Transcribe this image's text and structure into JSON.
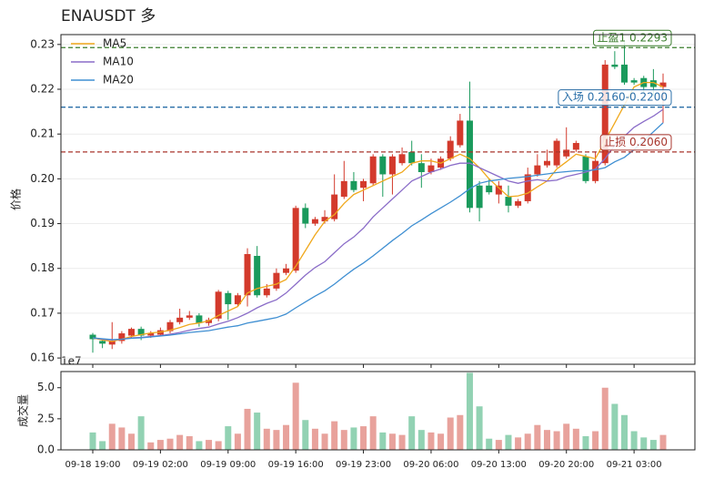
{
  "chart_data": {
    "type": "candlestick",
    "title": "ENAUSDT 多",
    "ylabel": "价格",
    "categories": [
      "09-18 19:00",
      null,
      null,
      null,
      null,
      null,
      null,
      "09-19 02:00",
      null,
      null,
      null,
      null,
      null,
      null,
      "09-19 09:00",
      null,
      null,
      null,
      null,
      null,
      null,
      "09-19 16:00",
      null,
      null,
      null,
      null,
      null,
      null,
      "09-19 23:00",
      null,
      null,
      null,
      null,
      null,
      null,
      "09-20 06:00",
      null,
      null,
      null,
      null,
      null,
      null,
      "09-20 13:00",
      null,
      null,
      null,
      null,
      null,
      null,
      "09-20 20:00",
      null,
      null,
      null,
      null,
      null,
      null,
      "09-21 03:00",
      null,
      null,
      null
    ],
    "open": [
      0.1652,
      0.1638,
      0.163,
      0.1638,
      0.165,
      0.1665,
      0.165,
      0.1652,
      0.166,
      0.168,
      0.169,
      0.1695,
      0.1678,
      0.1688,
      0.1745,
      0.172,
      0.174,
      0.1828,
      0.174,
      0.1755,
      0.179,
      0.1795,
      0.1935,
      0.19,
      0.1905,
      0.191,
      0.196,
      0.1995,
      0.198,
      0.199,
      0.205,
      0.201,
      0.2035,
      0.206,
      0.2035,
      0.2015,
      0.2025,
      0.2045,
      0.2075,
      0.213,
      0.1985,
      0.1985,
      0.1965,
      0.196,
      0.194,
      0.195,
      0.201,
      0.203,
      0.203,
      0.205,
      0.2065,
      0.205,
      0.1995,
      0.2035,
      0.2255,
      0.2255,
      0.222,
      0.2225,
      0.222,
      0.2205
    ],
    "high": [
      0.1656,
      0.164,
      0.168,
      0.166,
      0.1668,
      0.167,
      0.166,
      0.1668,
      0.1685,
      0.171,
      0.1705,
      0.17,
      0.169,
      0.1752,
      0.175,
      0.1745,
      0.1845,
      0.185,
      0.1765,
      0.18,
      0.181,
      0.194,
      0.1945,
      0.1915,
      0.193,
      0.201,
      0.204,
      0.2015,
      0.2,
      0.2055,
      0.2055,
      0.2055,
      0.207,
      0.2085,
      0.2055,
      0.2045,
      0.205,
      0.2095,
      0.2145,
      0.2217,
      0.1995,
      0.2,
      0.1995,
      0.1985,
      0.1955,
      0.2025,
      0.2055,
      0.2065,
      0.209,
      0.2115,
      0.2085,
      0.2055,
      0.206,
      0.2265,
      0.2285,
      0.2305,
      0.2225,
      0.223,
      0.2245,
      0.2235
    ],
    "low": [
      0.1612,
      0.1622,
      0.162,
      0.1632,
      0.1645,
      0.164,
      0.1645,
      0.1648,
      0.1655,
      0.1675,
      0.1685,
      0.167,
      0.1672,
      0.1682,
      0.1685,
      0.1715,
      0.1715,
      0.1735,
      0.1735,
      0.175,
      0.1785,
      0.179,
      0.189,
      0.1895,
      0.19,
      0.1905,
      0.1955,
      0.197,
      0.195,
      0.1985,
      0.196,
      0.1965,
      0.203,
      0.203,
      0.198,
      0.201,
      0.202,
      0.204,
      0.207,
      0.1925,
      0.1905,
      0.1965,
      0.1945,
      0.1925,
      0.1935,
      0.1945,
      0.2005,
      0.2025,
      0.2025,
      0.2045,
      0.206,
      0.199,
      0.199,
      0.203,
      0.2245,
      0.221,
      0.221,
      0.219,
      0.2185,
      0.2125
    ],
    "close": [
      0.1642,
      0.1632,
      0.1638,
      0.1655,
      0.1665,
      0.165,
      0.1655,
      0.1662,
      0.168,
      0.169,
      0.1695,
      0.1678,
      0.1685,
      0.1748,
      0.172,
      0.174,
      0.1832,
      0.174,
      0.1755,
      0.179,
      0.18,
      0.1935,
      0.19,
      0.191,
      0.1915,
      0.1965,
      0.1995,
      0.1975,
      0.1995,
      0.205,
      0.201,
      0.205,
      0.2055,
      0.2035,
      0.2015,
      0.203,
      0.2045,
      0.2085,
      0.213,
      0.1935,
      0.1935,
      0.197,
      0.1985,
      0.194,
      0.195,
      0.201,
      0.203,
      0.204,
      0.2085,
      0.2065,
      0.208,
      0.1995,
      0.204,
      0.2255,
      0.225,
      0.2215,
      0.2215,
      0.2205,
      0.2205,
      0.2215
    ],
    "up_color": "#d33a2c",
    "down_color": "#1a9a5c",
    "series": [
      {
        "name": "MA5",
        "color": "#f0a81c",
        "values": [
          0.1645,
          0.164,
          0.1637,
          0.1642,
          0.1648,
          0.1652,
          0.1656,
          0.1658,
          0.1662,
          0.1668,
          0.1675,
          0.1678,
          0.1683,
          0.1695,
          0.1705,
          0.1715,
          0.1745,
          0.1755,
          0.176,
          0.1765,
          0.1775,
          0.1805,
          0.184,
          0.1875,
          0.1905,
          0.192,
          0.1945,
          0.1965,
          0.1975,
          0.1985,
          0.1995,
          0.2005,
          0.2015,
          0.2035,
          0.204,
          0.204,
          0.2035,
          0.2045,
          0.2055,
          0.2045,
          0.2025,
          0.2,
          0.198,
          0.196,
          0.1962,
          0.1968,
          0.1982,
          0.1995,
          0.2022,
          0.2038,
          0.2055,
          0.205,
          0.2045,
          0.2085,
          0.2125,
          0.2165,
          0.2205,
          0.2215,
          0.2215,
          0.2205
        ]
      },
      {
        "name": "MA10",
        "color": "#8a6cc8",
        "values": [
          0.1645,
          0.1642,
          0.164,
          0.1642,
          0.1645,
          0.1646,
          0.1648,
          0.165,
          0.1653,
          0.1657,
          0.1662,
          0.1666,
          0.1669,
          0.1676,
          0.1682,
          0.169,
          0.17,
          0.1712,
          0.1722,
          0.173,
          0.1745,
          0.1765,
          0.1785,
          0.1802,
          0.1815,
          0.1835,
          0.1855,
          0.187,
          0.189,
          0.1915,
          0.1935,
          0.1955,
          0.1975,
          0.1995,
          0.2005,
          0.2015,
          0.2022,
          0.203,
          0.2035,
          0.2035,
          0.2025,
          0.2015,
          0.2005,
          0.1995,
          0.199,
          0.1995,
          0.1998,
          0.1995,
          0.1997,
          0.2005,
          0.201,
          0.2015,
          0.2022,
          0.2045,
          0.2075,
          0.2095,
          0.2115,
          0.2128,
          0.214,
          0.2155
        ]
      },
      {
        "name": "MA20",
        "color": "#3f8fd2",
        "values": [
          0.1645,
          0.1643,
          0.1641,
          0.1642,
          0.1644,
          0.1645,
          0.1647,
          0.1649,
          0.1651,
          0.1654,
          0.1657,
          0.1659,
          0.1661,
          0.1665,
          0.1669,
          0.1672,
          0.1678,
          0.1682,
          0.1686,
          0.169,
          0.1698,
          0.1712,
          0.1725,
          0.1738,
          0.175,
          0.1765,
          0.1782,
          0.1798,
          0.1812,
          0.1828,
          0.1845,
          0.1862,
          0.1878,
          0.1895,
          0.1908,
          0.1922,
          0.1935,
          0.1948,
          0.1962,
          0.1978,
          0.199,
          0.1995,
          0.1998,
          0.2001,
          0.2003,
          0.2005,
          0.2008,
          0.2011,
          0.2014,
          0.2016,
          0.2018,
          0.2018,
          0.202,
          0.2025,
          0.2038,
          0.2048,
          0.2065,
          0.2085,
          0.2105,
          0.2125
        ]
      }
    ],
    "levels": [
      {
        "label": "止盈1 0.2293",
        "value": 0.2293,
        "color": "#3a7d2c"
      },
      {
        "label": "入场 0.2160-0.2200",
        "value": 0.216,
        "color": "#2a6fa8"
      },
      {
        "label": "止损 0.2060",
        "value": 0.206,
        "color": "#a8352c"
      }
    ],
    "ylim": [
      0.1586,
      0.2322
    ],
    "yticks": [
      0.16,
      0.17,
      0.18,
      0.19,
      {
        "value": 0.2,
        "label": "0.20"
      },
      0.21,
      0.22,
      0.23
    ],
    "grid": true,
    "legend": "upper left",
    "volume": {
      "ylabel": "成交量",
      "offset_label": "1e7",
      "values": [
        1.4,
        0.7,
        2.1,
        1.8,
        1.3,
        2.7,
        0.6,
        0.8,
        0.9,
        1.2,
        1.1,
        0.7,
        0.8,
        0.7,
        1.9,
        1.3,
        3.3,
        3.0,
        1.7,
        1.6,
        2.0,
        5.4,
        2.4,
        1.7,
        1.3,
        2.3,
        1.6,
        1.8,
        1.9,
        2.7,
        1.4,
        1.3,
        1.2,
        2.7,
        1.6,
        1.4,
        1.3,
        2.6,
        2.8,
        6.2,
        3.5,
        0.9,
        0.8,
        1.2,
        1.0,
        1.3,
        2.0,
        1.6,
        1.5,
        2.1,
        1.7,
        1.1,
        1.5,
        5.0,
        3.7,
        2.8,
        1.5,
        1.0,
        0.8,
        1.2
      ],
      "up_color": "#e8a29c",
      "down_color": "#92d2b3",
      "ylim": [
        0,
        6.3
      ],
      "yticks": [
        {
          "value": 0,
          "label": "0.0"
        },
        {
          "value": 2.5,
          "label": "2.5"
        },
        {
          "value": 5,
          "label": "5.0"
        }
      ]
    }
  }
}
